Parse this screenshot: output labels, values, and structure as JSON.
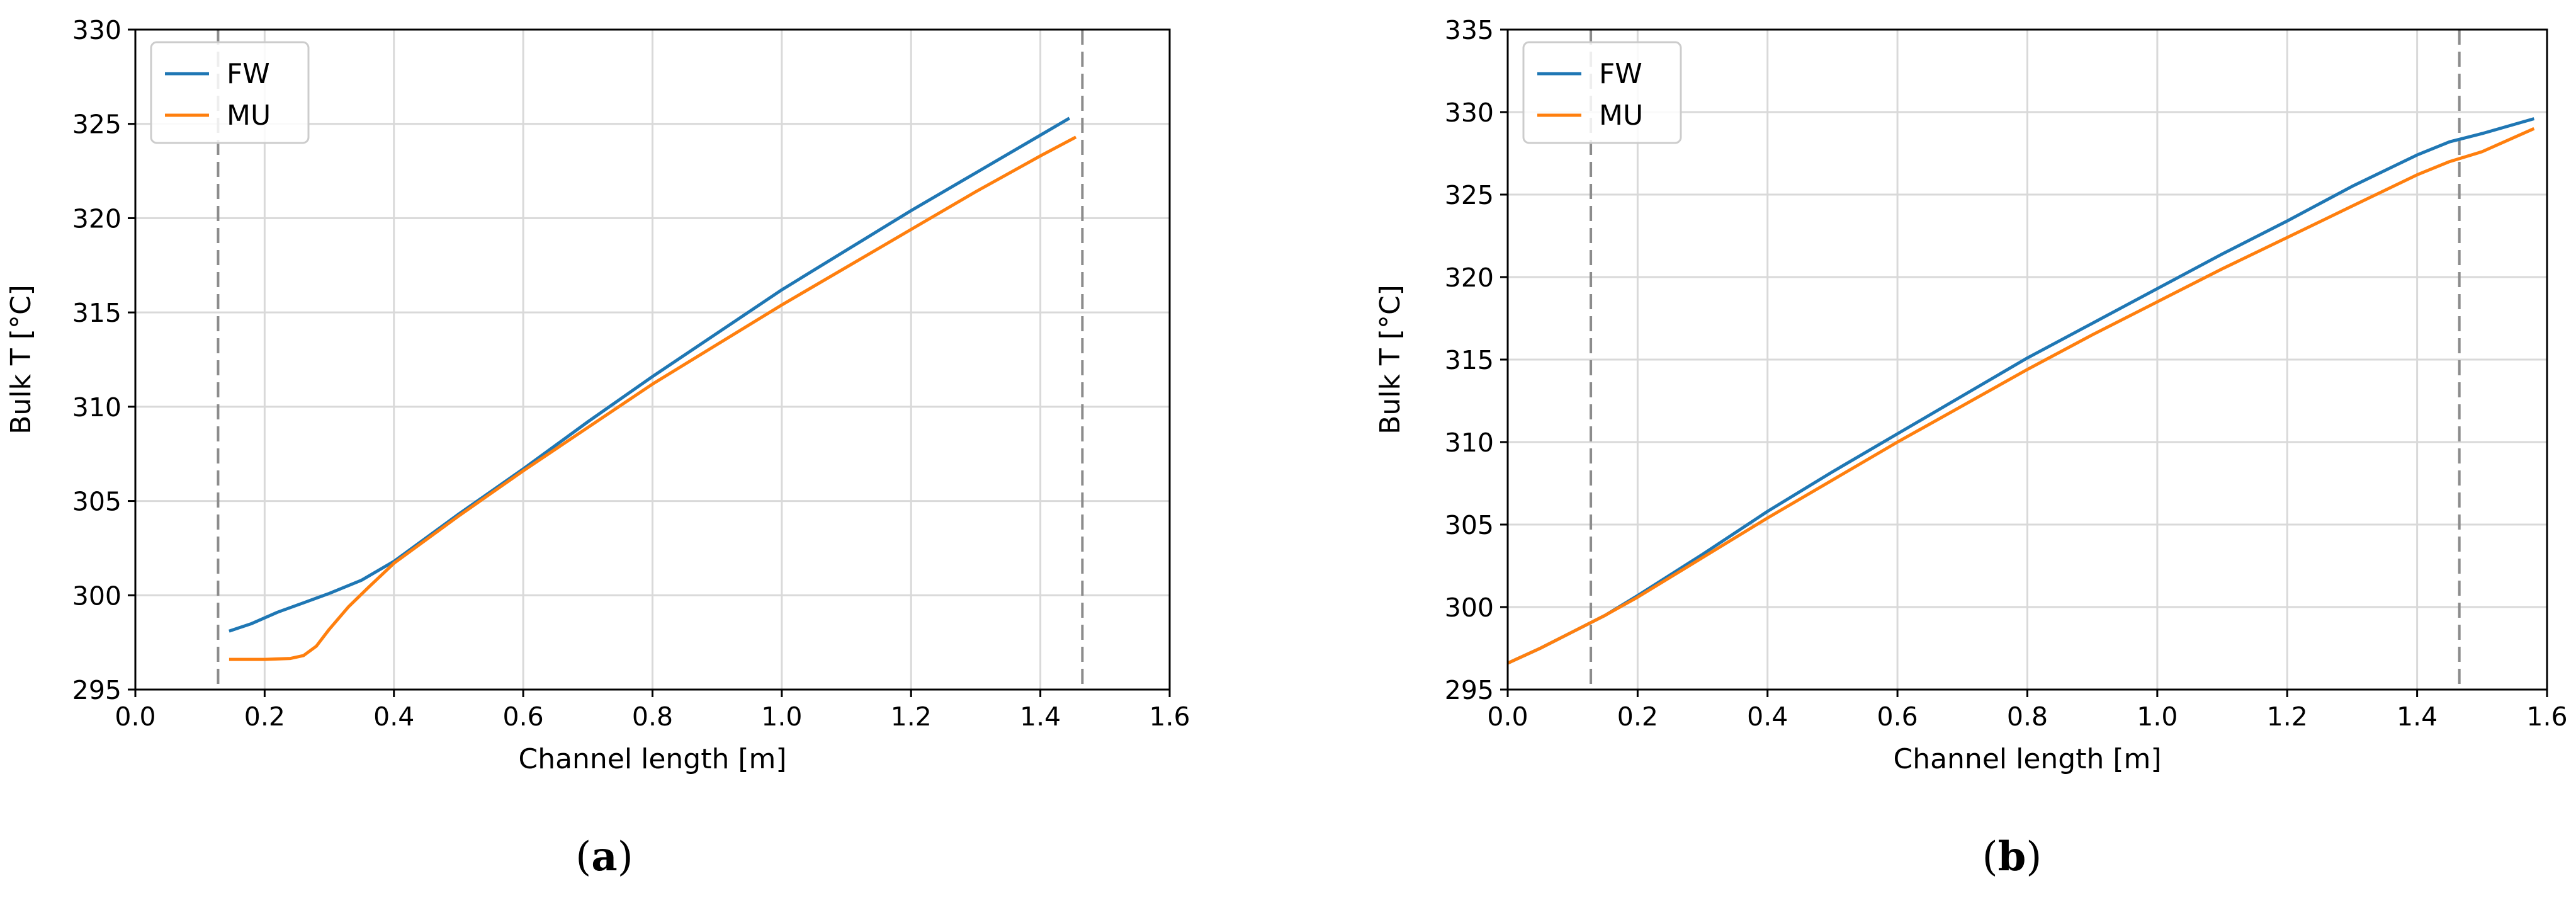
{
  "chart_data": [
    {
      "type": "line",
      "caption": {
        "open": "(",
        "letter": "a",
        "close": ")"
      },
      "xlabel": "Channel length [m]",
      "ylabel": "Bulk T [°C]",
      "xlim": [
        0.0,
        1.6
      ],
      "ylim": [
        295,
        330
      ],
      "xticks": [
        "0.0",
        "0.2",
        "0.4",
        "0.6",
        "0.8",
        "1.0",
        "1.2",
        "1.4",
        "1.6"
      ],
      "yticks": [
        "295",
        "300",
        "305",
        "310",
        "315",
        "320",
        "325",
        "330"
      ],
      "grid": true,
      "legend_position": "top-left",
      "vlines": [
        0.128,
        1.465
      ],
      "series": [
        {
          "name": "FW",
          "color": "#1f77b4",
          "x": [
            0.145,
            0.18,
            0.22,
            0.26,
            0.3,
            0.35,
            0.4,
            0.5,
            0.6,
            0.7,
            0.8,
            0.9,
            1.0,
            1.1,
            1.2,
            1.3,
            1.4,
            1.445
          ],
          "y": [
            298.1,
            298.5,
            299.1,
            299.6,
            300.1,
            300.8,
            301.8,
            304.3,
            306.7,
            309.2,
            311.6,
            313.9,
            316.2,
            318.3,
            320.4,
            322.4,
            324.4,
            325.3
          ]
        },
        {
          "name": "MU",
          "color": "#ff7f0e",
          "x": [
            0.145,
            0.2,
            0.24,
            0.26,
            0.28,
            0.3,
            0.33,
            0.36,
            0.4,
            0.5,
            0.6,
            0.7,
            0.8,
            0.9,
            1.0,
            1.1,
            1.2,
            1.3,
            1.4,
            1.455
          ],
          "y": [
            296.6,
            296.6,
            296.65,
            296.8,
            297.3,
            298.2,
            299.4,
            300.4,
            301.7,
            304.2,
            306.6,
            308.9,
            311.2,
            313.3,
            315.4,
            317.4,
            319.4,
            321.4,
            323.3,
            324.3
          ]
        }
      ]
    },
    {
      "type": "line",
      "caption": {
        "open": "(",
        "letter": "b",
        "close": ")"
      },
      "xlabel": "Channel length [m]",
      "ylabel": "Bulk T [°C]",
      "xlim": [
        0.0,
        1.6
      ],
      "ylim": [
        295,
        335
      ],
      "xticks": [
        "0.0",
        "0.2",
        "0.4",
        "0.6",
        "0.8",
        "1.0",
        "1.2",
        "1.4",
        "1.6"
      ],
      "yticks": [
        "295",
        "300",
        "305",
        "310",
        "315",
        "320",
        "325",
        "330",
        "335"
      ],
      "grid": true,
      "legend_position": "top-left",
      "vlines": [
        0.128,
        1.465
      ],
      "series": [
        {
          "name": "FW",
          "color": "#1f77b4",
          "x": [
            0.0,
            0.05,
            0.1,
            0.15,
            0.2,
            0.3,
            0.4,
            0.5,
            0.6,
            0.7,
            0.8,
            0.9,
            1.0,
            1.1,
            1.2,
            1.3,
            1.4,
            1.45,
            1.5,
            1.58
          ],
          "y": [
            296.6,
            297.5,
            298.5,
            299.5,
            300.7,
            303.2,
            305.8,
            308.2,
            310.5,
            312.8,
            315.1,
            317.2,
            319.3,
            321.4,
            323.4,
            325.5,
            327.4,
            328.2,
            328.7,
            329.6
          ]
        },
        {
          "name": "MU",
          "color": "#ff7f0e",
          "x": [
            0.0,
            0.05,
            0.1,
            0.15,
            0.2,
            0.3,
            0.4,
            0.5,
            0.6,
            0.7,
            0.8,
            0.9,
            1.0,
            1.1,
            1.2,
            1.3,
            1.4,
            1.45,
            1.5,
            1.58
          ],
          "y": [
            296.6,
            297.5,
            298.5,
            299.5,
            300.6,
            303.0,
            305.4,
            307.7,
            310.0,
            312.2,
            314.4,
            316.5,
            318.5,
            320.5,
            322.4,
            324.3,
            326.2,
            327.0,
            327.6,
            329.0
          ]
        }
      ]
    }
  ]
}
